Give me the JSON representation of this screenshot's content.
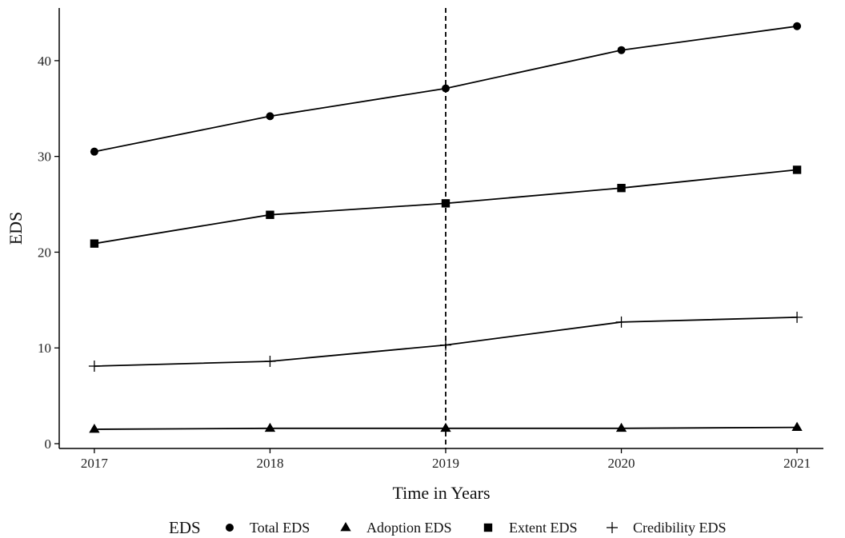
{
  "chart_data": {
    "type": "line",
    "title": "",
    "xlabel": "Time in Years",
    "ylabel": "EDS",
    "x": [
      2017,
      2018,
      2019,
      2020,
      2021
    ],
    "x_tick_labels": [
      "2017",
      "2018",
      "2019",
      "2020",
      "2021"
    ],
    "y_ticks": [
      0,
      10,
      20,
      30,
      40
    ],
    "y_tick_labels": [
      "0",
      "10",
      "20",
      "30",
      "40"
    ],
    "xlim": [
      2016.8,
      2021.15
    ],
    "ylim": [
      -0.5,
      45.5
    ],
    "grid": false,
    "vline": {
      "x": 2019,
      "style": "dashed"
    },
    "legend": {
      "title": "EDS",
      "position": "bottom",
      "entries": [
        "Total EDS",
        "Adoption EDS",
        "Extent EDS",
        "Credibility EDS"
      ]
    },
    "series": [
      {
        "name": "Total EDS",
        "marker": "circle",
        "values": [
          30.5,
          34.2,
          37.1,
          41.1,
          43.6
        ]
      },
      {
        "name": "Adoption EDS",
        "marker": "triangle",
        "values": [
          1.5,
          1.6,
          1.6,
          1.6,
          1.7
        ]
      },
      {
        "name": "Extent EDS",
        "marker": "square",
        "values": [
          20.9,
          23.9,
          25.1,
          26.7,
          28.6
        ]
      },
      {
        "name": "Credibility EDS",
        "marker": "plus",
        "values": [
          8.1,
          8.6,
          10.3,
          12.7,
          13.2
        ]
      }
    ],
    "colors": {
      "line": "#000000",
      "axis": "#000000"
    }
  }
}
